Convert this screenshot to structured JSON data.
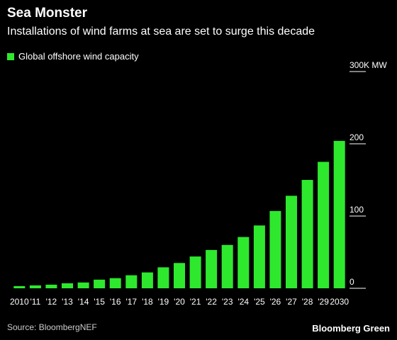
{
  "header": {
    "title": "Sea Monster",
    "subtitle": "Installations of wind farms at sea are set to surge this decade"
  },
  "legend": {
    "label": "Global offshore wind capacity"
  },
  "footer": {
    "source": "Source: BloombergNEF",
    "brand": "Bloomberg Green"
  },
  "colors": {
    "bar": "#2ee82e",
    "background": "#000000",
    "gridline": "#ffffff"
  },
  "chart_data": {
    "type": "bar",
    "title": "Sea Monster",
    "subtitle": "Installations of wind farms at sea are set to surge this decade",
    "xlabel": "",
    "ylabel": "",
    "ylim": [
      0,
      300
    ],
    "y_ticks": [
      {
        "value": 0,
        "label": "0"
      },
      {
        "value": 100,
        "label": "100"
      },
      {
        "value": 200,
        "label": "200"
      },
      {
        "value": 300,
        "label": "300K MW"
      }
    ],
    "grid": false,
    "legend_position": "top-left",
    "categories": [
      "2010",
      "'11",
      "'12",
      "'13",
      "'14",
      "'15",
      "'16",
      "'17",
      "'18",
      "'19",
      "'20",
      "'21",
      "'22",
      "'23",
      "'24",
      "'25",
      "'26",
      "'27",
      "'28",
      "'29",
      "2030"
    ],
    "series": [
      {
        "name": "Global offshore wind capacity",
        "values": [
          3,
          4,
          5,
          7,
          8,
          12,
          14,
          18,
          22,
          29,
          35,
          44,
          53,
          60,
          71,
          87,
          107,
          128,
          150,
          175,
          204
        ]
      }
    ]
  }
}
